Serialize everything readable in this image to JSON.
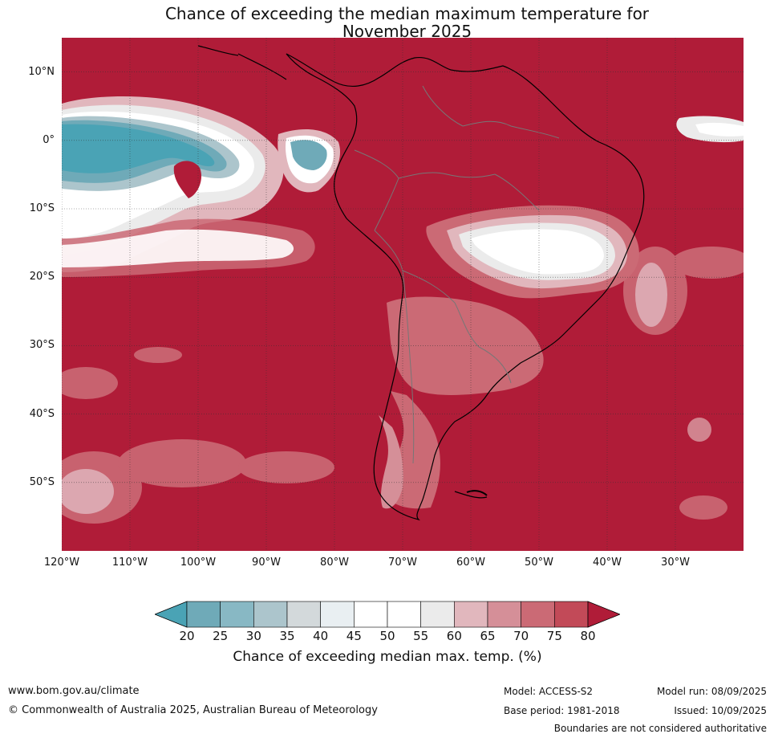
{
  "title": {
    "line1": "Chance of exceeding the median maximum temperature for",
    "line2": "November 2025"
  },
  "map": {
    "region": "South America",
    "colors": {
      "ocean_dominant": "#b01c38",
      "band_75_80": "#c24a58",
      "band_70_75": "#cb6a75",
      "band_65_70": "#d58f98",
      "band_60_65": "#e1b7bd",
      "band_55_60": "#ebebeb",
      "band_45_55": "#ffffff",
      "band_40_45": "#e9eff2",
      "band_35_40": "#d3d9db",
      "band_30_35": "#acc5cc",
      "band_25_30": "#88b8c4",
      "band_20_25": "#6faab8",
      "band_below_20": "#4aa3b5",
      "coastline": "#000000",
      "borders": "#777777",
      "gridlines": "#333333"
    },
    "lat_labels": [
      "10°N",
      "0°",
      "10°S",
      "20°S",
      "30°S",
      "40°S",
      "50°S"
    ],
    "lat_values": [
      10,
      0,
      -10,
      -20,
      -30,
      -40,
      -50
    ],
    "lon_labels": [
      "120°W",
      "110°W",
      "100°W",
      "90°W",
      "80°W",
      "70°W",
      "60°W",
      "50°W",
      "40°W",
      "30°W"
    ],
    "lon_values": [
      -120,
      -110,
      -100,
      -90,
      -80,
      -70,
      -60,
      -50,
      -40,
      -30
    ],
    "extent": {
      "lon_min": -120,
      "lon_max": -20,
      "lat_min": -60,
      "lat_max": 15
    }
  },
  "colorbar": {
    "ticks": [
      "20",
      "25",
      "30",
      "35",
      "40",
      "45",
      "50",
      "55",
      "60",
      "65",
      "70",
      "75",
      "80"
    ],
    "colors": [
      "#4aa3b5",
      "#6faab8",
      "#88b8c4",
      "#acc5cc",
      "#d3d9db",
      "#e9eff2",
      "#ffffff",
      "#ffffff",
      "#ebebeb",
      "#e1b7bd",
      "#d58f98",
      "#cb6a75",
      "#c24a58",
      "#b01c38"
    ],
    "label": "Chance of exceeding median max. temp. (%)"
  },
  "footer": {
    "website": "www.bom.gov.au/climate",
    "copyright": "© Commonwealth of Australia 2025, Australian Bureau of Meteorology",
    "model": "Model: ACCESS-S2",
    "base_period": "Base period: 1981-2018",
    "model_run": "Model run: 08/09/2025",
    "issued": "Issued: 10/09/2025",
    "disclaimer": "Boundaries are not considered authoritative"
  }
}
